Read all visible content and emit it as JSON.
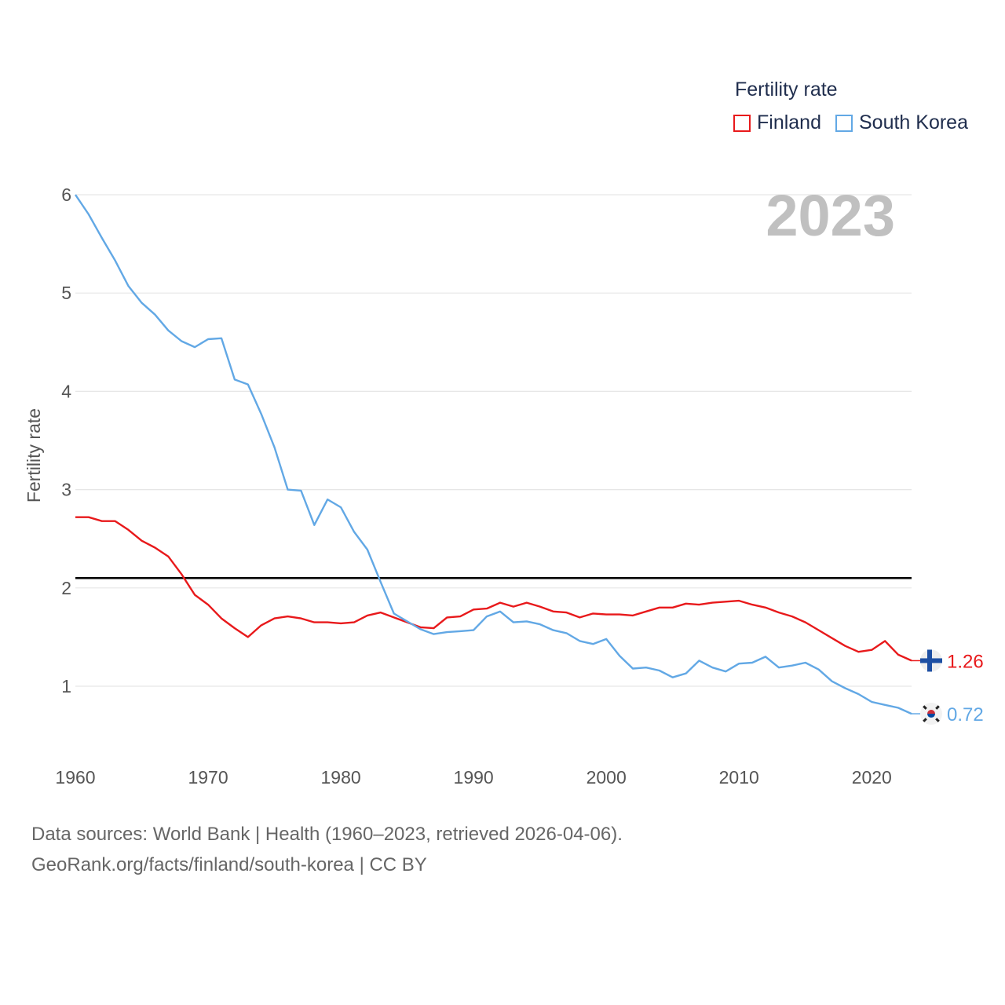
{
  "legend": {
    "title": "Fertility rate",
    "items": [
      {
        "label": "Finland",
        "color": "#e8191b"
      },
      {
        "label": "South Korea",
        "color": "#62a8e5"
      }
    ]
  },
  "footer": {
    "line1": "Data sources: World Bank | Health (1960–2023, retrieved 2026-04-06).",
    "line2": "GeoRank.org/facts/finland/south-korea | CC BY"
  },
  "chart_data": {
    "type": "line",
    "title": "Fertility rate",
    "year_label": "2023",
    "xlabel": "",
    "ylabel": "Fertility rate",
    "xlim": [
      1960,
      2023
    ],
    "ylim": [
      0.5,
      6
    ],
    "x_ticks": [
      1960,
      1970,
      1980,
      1990,
      2000,
      2010,
      2020
    ],
    "y_ticks": [
      1,
      2,
      3,
      4,
      5,
      6
    ],
    "reference_line": {
      "y": 2.1,
      "color": "#000000"
    },
    "x": [
      1960,
      1961,
      1962,
      1963,
      1964,
      1965,
      1966,
      1967,
      1968,
      1969,
      1970,
      1971,
      1972,
      1973,
      1974,
      1975,
      1976,
      1977,
      1978,
      1979,
      1980,
      1981,
      1982,
      1983,
      1984,
      1985,
      1986,
      1987,
      1988,
      1989,
      1990,
      1991,
      1992,
      1993,
      1994,
      1995,
      1996,
      1997,
      1998,
      1999,
      2000,
      2001,
      2002,
      2003,
      2004,
      2005,
      2006,
      2007,
      2008,
      2009,
      2010,
      2011,
      2012,
      2013,
      2014,
      2015,
      2016,
      2017,
      2018,
      2019,
      2020,
      2021,
      2022,
      2023
    ],
    "series": [
      {
        "name": "Finland",
        "color": "#e8191b",
        "end_label": "1.26",
        "flag": "finland-flag",
        "values": [
          2.72,
          2.72,
          2.68,
          2.68,
          2.59,
          2.48,
          2.41,
          2.32,
          2.14,
          1.93,
          1.83,
          1.69,
          1.59,
          1.5,
          1.62,
          1.69,
          1.71,
          1.69,
          1.65,
          1.65,
          1.64,
          1.65,
          1.72,
          1.75,
          1.7,
          1.65,
          1.6,
          1.59,
          1.7,
          1.71,
          1.78,
          1.79,
          1.85,
          1.81,
          1.85,
          1.81,
          1.76,
          1.75,
          1.7,
          1.74,
          1.73,
          1.73,
          1.72,
          1.76,
          1.8,
          1.8,
          1.84,
          1.83,
          1.85,
          1.86,
          1.87,
          1.83,
          1.8,
          1.75,
          1.71,
          1.65,
          1.57,
          1.49,
          1.41,
          1.35,
          1.37,
          1.46,
          1.32,
          1.26
        ]
      },
      {
        "name": "South Korea",
        "color": "#62a8e5",
        "end_label": "0.72",
        "flag": "south-korea-flag",
        "values": [
          6.0,
          5.8,
          5.56,
          5.33,
          5.07,
          4.9,
          4.78,
          4.62,
          4.51,
          4.45,
          4.53,
          4.54,
          4.12,
          4.07,
          3.77,
          3.43,
          3.0,
          2.99,
          2.64,
          2.9,
          2.82,
          2.57,
          2.39,
          2.06,
          1.74,
          1.66,
          1.58,
          1.53,
          1.55,
          1.56,
          1.57,
          1.71,
          1.76,
          1.65,
          1.66,
          1.63,
          1.57,
          1.54,
          1.46,
          1.43,
          1.48,
          1.31,
          1.18,
          1.19,
          1.16,
          1.09,
          1.13,
          1.26,
          1.19,
          1.15,
          1.23,
          1.24,
          1.3,
          1.19,
          1.21,
          1.24,
          1.17,
          1.05,
          0.98,
          0.92,
          0.84,
          0.81,
          0.78,
          0.72
        ]
      }
    ],
    "source": "World Bank | Health (1960–2023, retrieved 2026-04-06)"
  }
}
